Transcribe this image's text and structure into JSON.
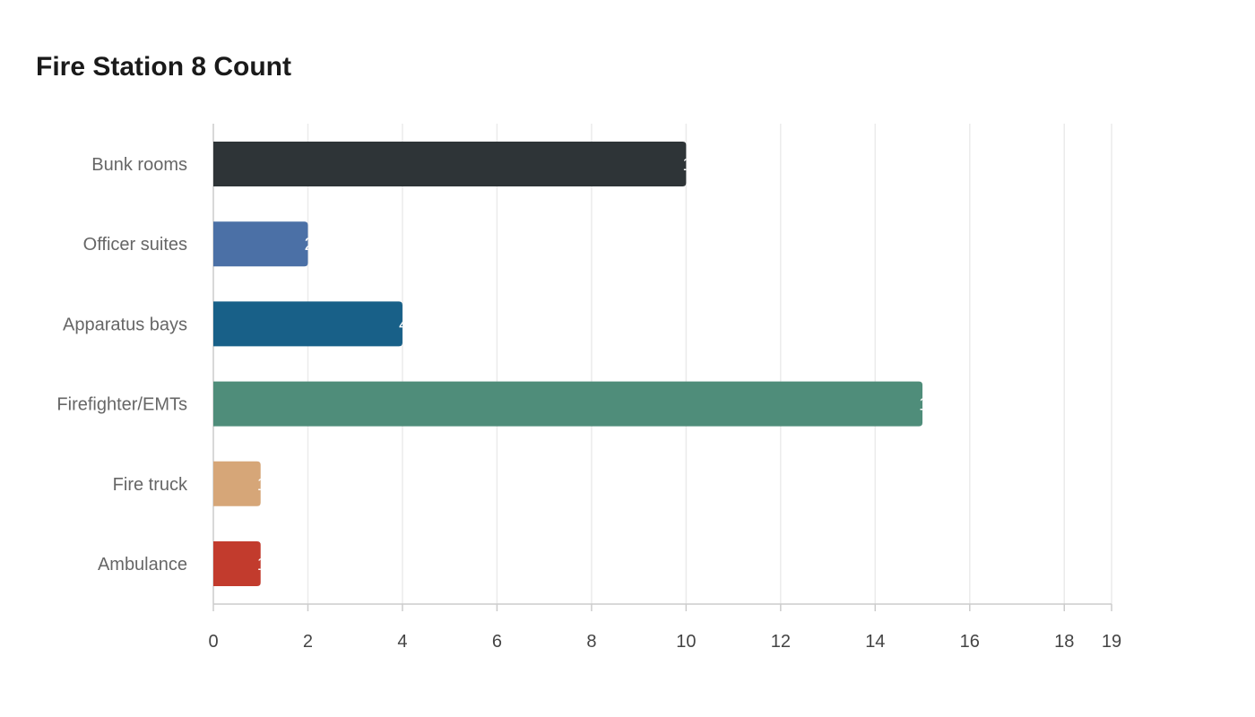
{
  "chart_data": {
    "type": "bar",
    "orientation": "horizontal",
    "title": "Fire Station 8 Count",
    "xlabel": "",
    "ylabel": "",
    "categories": [
      "Bunk rooms",
      "Officer suites",
      "Apparatus bays",
      "Firefighter/EMTs",
      "Fire truck",
      "Ambulance"
    ],
    "values": [
      10,
      2,
      4,
      15,
      1,
      1
    ],
    "colors": [
      "#2e3437",
      "#4b70a6",
      "#186088",
      "#4f8d7a",
      "#d6a678",
      "#c23b2d"
    ],
    "xlim": [
      0,
      19
    ],
    "xticks": [
      "0",
      "2",
      "4",
      "6",
      "8",
      "10",
      "12",
      "14",
      "16",
      "18",
      "19"
    ],
    "grid": true,
    "legend": "none"
  }
}
